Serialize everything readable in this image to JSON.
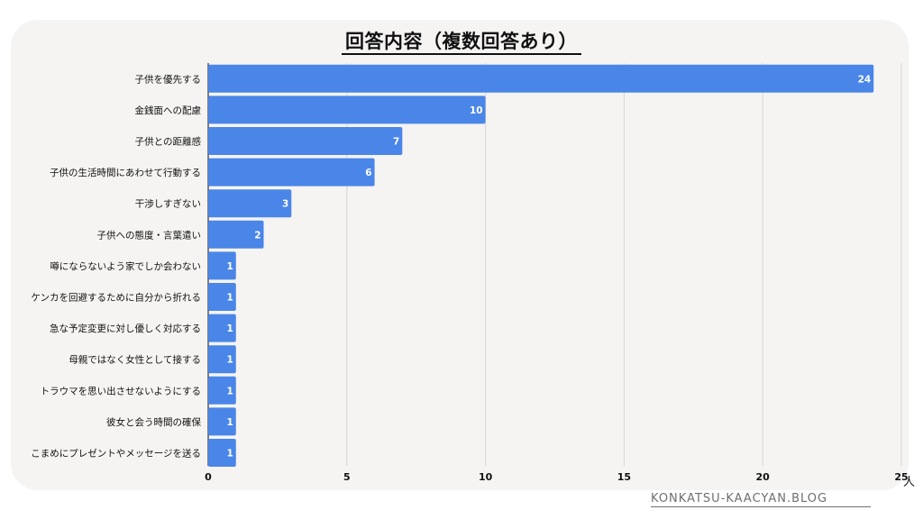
{
  "site": {
    "watermark": "KONKATSU-KAACYAN.BLOG"
  },
  "chart_data": {
    "type": "bar",
    "orientation": "horizontal",
    "title": "回答内容（複数回答あり）",
    "xlabel": "",
    "ylabel": "",
    "unit": "人",
    "xlim": [
      0,
      25
    ],
    "xticks": [
      0,
      5,
      10,
      15,
      20,
      25
    ],
    "grid": true,
    "color": "#4a86e8",
    "categories": [
      "子供を優先する",
      "金銭面への配慮",
      "子供との距離感",
      "子供の生活時間にあわせて行動する",
      "干渉しすぎない",
      "子供への態度・言葉遣い",
      "噂にならないよう家でしか会わない",
      "ケンカを回避するために自分から折れる",
      "急な予定変更に対し優しく対応する",
      "母親ではなく女性として接する",
      "トラウマを思い出させないようにする",
      "彼女と会う時間の確保",
      "こまめにプレゼントやメッセージを送る"
    ],
    "values": [
      24,
      10,
      7,
      6,
      3,
      2,
      1,
      1,
      1,
      1,
      1,
      1,
      1
    ]
  }
}
